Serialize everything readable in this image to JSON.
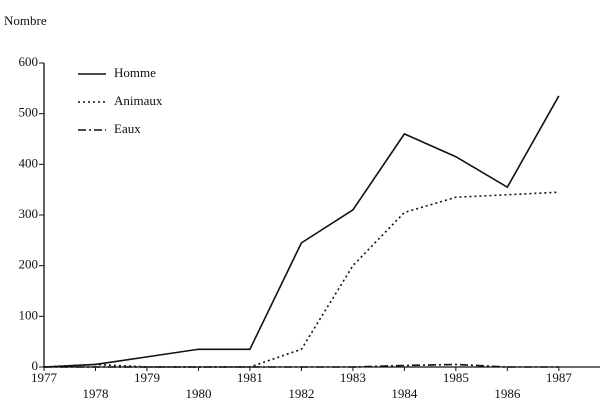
{
  "chart_data": {
    "type": "line",
    "y_label": "Nombre",
    "x": [
      1977,
      1978,
      1979,
      1980,
      1981,
      1982,
      1983,
      1984,
      1985,
      1986,
      1987
    ],
    "series": [
      {
        "name": "Homme",
        "color": "#111111",
        "style": "solid",
        "values": [
          0,
          5,
          20,
          35,
          35,
          245,
          310,
          460,
          415,
          355,
          535
        ]
      },
      {
        "name": "Animaux",
        "color": "#111111",
        "style": "dotted",
        "values": [
          0,
          5,
          0,
          0,
          0,
          35,
          200,
          305,
          335,
          340,
          345
        ]
      },
      {
        "name": "Eaux",
        "color": "#111111",
        "style": "dashdot",
        "values": [
          0,
          0,
          0,
          0,
          0,
          0,
          0,
          3,
          5,
          0,
          0
        ]
      }
    ],
    "xlim": [
      1977,
      1987.8
    ],
    "xticks": [
      1977,
      1978,
      1979,
      1980,
      1981,
      1982,
      1983,
      1984,
      1985,
      1986,
      1987
    ],
    "ylim": [
      0,
      600
    ],
    "yticks": [
      0,
      100,
      200,
      300,
      400,
      500,
      600
    ],
    "legend": "upper left",
    "grid": false
  }
}
